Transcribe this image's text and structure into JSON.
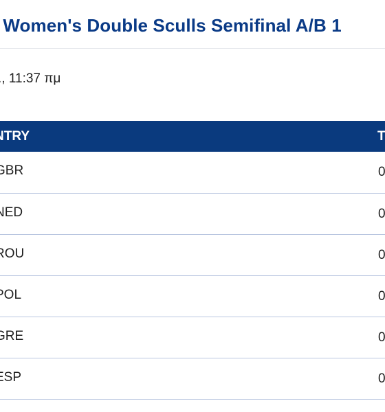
{
  "header": {
    "title": "Women's Double Sculls Semifinal A/B 1",
    "datetime": "11:37 πμ"
  },
  "table": {
    "columns": {
      "country": "NTRY",
      "time": "T"
    },
    "rows": [
      {
        "country": "GBR",
        "time": "0"
      },
      {
        "country": "NED",
        "time": "0"
      },
      {
        "country": "ROU",
        "time": "0"
      },
      {
        "country": "POL",
        "time": "0"
      },
      {
        "country": "GRE",
        "time": "0"
      },
      {
        "country": "ESP",
        "time": "0"
      }
    ]
  },
  "colors": {
    "title": "#0a3a86",
    "header_bg": "#0a3a7e",
    "row_divider": "#b9c6e0"
  }
}
